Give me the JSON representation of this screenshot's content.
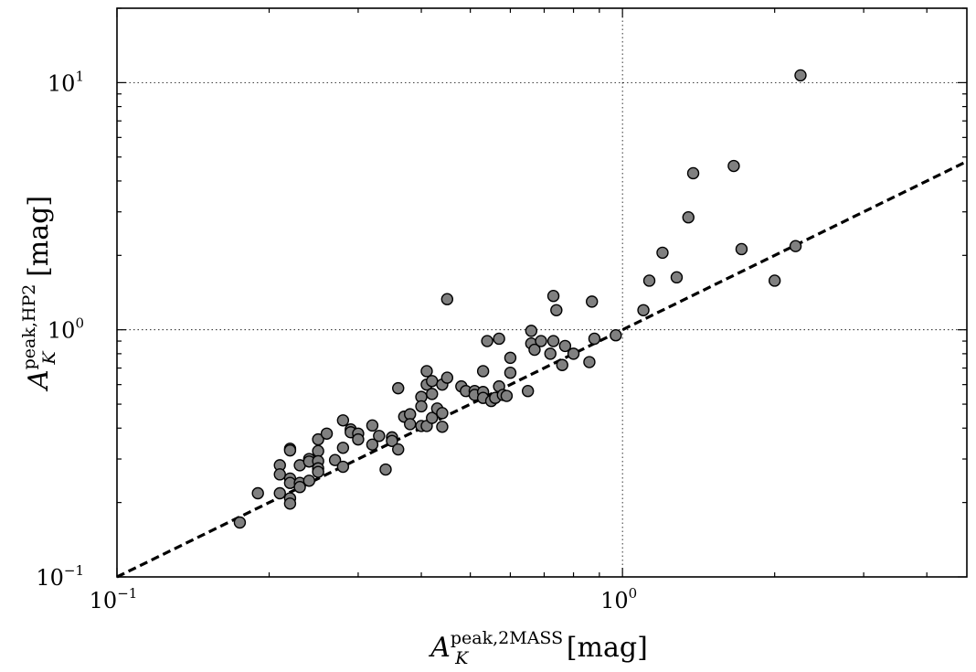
{
  "chart_data": {
    "type": "scatter",
    "xscale": "log",
    "yscale": "log",
    "xlim": [
      0.1,
      4.8
    ],
    "ylim": [
      0.1,
      20
    ],
    "grid": "major dotted",
    "xlabel": {
      "base": "A",
      "sub": "K",
      "sup": "peak,2MASS",
      "unit": " [mag]"
    },
    "ylabel": {
      "base": "A",
      "sub": "K",
      "sup": "peak,HP2",
      "unit": " [mag]"
    },
    "xticks": [
      {
        "value": 0.1,
        "base": "10",
        "exp": "−1"
      },
      {
        "value": 1,
        "base": "10",
        "exp": "0"
      }
    ],
    "yticks": [
      {
        "value": 0.1,
        "base": "10",
        "exp": "−1"
      },
      {
        "value": 1,
        "base": "10",
        "exp": "0"
      },
      {
        "value": 10,
        "base": "10",
        "exp": "1"
      }
    ],
    "reference_line": {
      "style": "dashed",
      "x": [
        0.1,
        4.8
      ],
      "y": [
        0.1,
        4.8
      ]
    },
    "marker_color": "#808080",
    "marker_edge": "#000000",
    "points": [
      {
        "x": 0.175,
        "y": 0.166
      },
      {
        "x": 0.19,
        "y": 0.218
      },
      {
        "x": 0.21,
        "y": 0.283
      },
      {
        "x": 0.21,
        "y": 0.26
      },
      {
        "x": 0.21,
        "y": 0.218
      },
      {
        "x": 0.22,
        "y": 0.33
      },
      {
        "x": 0.22,
        "y": 0.325
      },
      {
        "x": 0.22,
        "y": 0.25
      },
      {
        "x": 0.22,
        "y": 0.24
      },
      {
        "x": 0.22,
        "y": 0.208
      },
      {
        "x": 0.22,
        "y": 0.198
      },
      {
        "x": 0.23,
        "y": 0.283
      },
      {
        "x": 0.23,
        "y": 0.24
      },
      {
        "x": 0.23,
        "y": 0.231
      },
      {
        "x": 0.24,
        "y": 0.3
      },
      {
        "x": 0.24,
        "y": 0.293
      },
      {
        "x": 0.24,
        "y": 0.245
      },
      {
        "x": 0.25,
        "y": 0.36
      },
      {
        "x": 0.25,
        "y": 0.323
      },
      {
        "x": 0.25,
        "y": 0.294
      },
      {
        "x": 0.25,
        "y": 0.275
      },
      {
        "x": 0.25,
        "y": 0.266
      },
      {
        "x": 0.26,
        "y": 0.38
      },
      {
        "x": 0.27,
        "y": 0.297
      },
      {
        "x": 0.28,
        "y": 0.43
      },
      {
        "x": 0.28,
        "y": 0.333
      },
      {
        "x": 0.28,
        "y": 0.279
      },
      {
        "x": 0.29,
        "y": 0.395
      },
      {
        "x": 0.29,
        "y": 0.385
      },
      {
        "x": 0.3,
        "y": 0.38
      },
      {
        "x": 0.3,
        "y": 0.36
      },
      {
        "x": 0.32,
        "y": 0.41
      },
      {
        "x": 0.32,
        "y": 0.343
      },
      {
        "x": 0.33,
        "y": 0.372
      },
      {
        "x": 0.34,
        "y": 0.272
      },
      {
        "x": 0.35,
        "y": 0.367
      },
      {
        "x": 0.35,
        "y": 0.355
      },
      {
        "x": 0.36,
        "y": 0.58
      },
      {
        "x": 0.36,
        "y": 0.328
      },
      {
        "x": 0.37,
        "y": 0.445
      },
      {
        "x": 0.38,
        "y": 0.455
      },
      {
        "x": 0.38,
        "y": 0.415
      },
      {
        "x": 0.4,
        "y": 0.535
      },
      {
        "x": 0.4,
        "y": 0.49
      },
      {
        "x": 0.4,
        "y": 0.408
      },
      {
        "x": 0.41,
        "y": 0.68
      },
      {
        "x": 0.41,
        "y": 0.6
      },
      {
        "x": 0.41,
        "y": 0.408
      },
      {
        "x": 0.42,
        "y": 0.62
      },
      {
        "x": 0.42,
        "y": 0.55
      },
      {
        "x": 0.42,
        "y": 0.44
      },
      {
        "x": 0.43,
        "y": 0.48
      },
      {
        "x": 0.44,
        "y": 0.6
      },
      {
        "x": 0.44,
        "y": 0.46
      },
      {
        "x": 0.44,
        "y": 0.405
      },
      {
        "x": 0.45,
        "y": 1.33
      },
      {
        "x": 0.45,
        "y": 0.64
      },
      {
        "x": 0.48,
        "y": 0.59
      },
      {
        "x": 0.49,
        "y": 0.565
      },
      {
        "x": 0.51,
        "y": 0.565
      },
      {
        "x": 0.51,
        "y": 0.545
      },
      {
        "x": 0.53,
        "y": 0.68
      },
      {
        "x": 0.53,
        "y": 0.56
      },
      {
        "x": 0.53,
        "y": 0.53
      },
      {
        "x": 0.54,
        "y": 0.9
      },
      {
        "x": 0.55,
        "y": 0.515
      },
      {
        "x": 0.56,
        "y": 0.53
      },
      {
        "x": 0.57,
        "y": 0.92
      },
      {
        "x": 0.57,
        "y": 0.59
      },
      {
        "x": 0.58,
        "y": 0.545
      },
      {
        "x": 0.59,
        "y": 0.54
      },
      {
        "x": 0.6,
        "y": 0.77
      },
      {
        "x": 0.6,
        "y": 0.67
      },
      {
        "x": 0.65,
        "y": 0.565
      },
      {
        "x": 0.66,
        "y": 0.99
      },
      {
        "x": 0.66,
        "y": 0.88
      },
      {
        "x": 0.67,
        "y": 0.83
      },
      {
        "x": 0.69,
        "y": 0.9
      },
      {
        "x": 0.72,
        "y": 0.8
      },
      {
        "x": 0.73,
        "y": 1.37
      },
      {
        "x": 0.73,
        "y": 0.9
      },
      {
        "x": 0.74,
        "y": 1.2
      },
      {
        "x": 0.76,
        "y": 0.72
      },
      {
        "x": 0.77,
        "y": 0.86
      },
      {
        "x": 0.8,
        "y": 0.8
      },
      {
        "x": 0.86,
        "y": 0.74
      },
      {
        "x": 0.87,
        "y": 1.3
      },
      {
        "x": 0.88,
        "y": 0.92
      },
      {
        "x": 0.97,
        "y": 0.95
      },
      {
        "x": 1.1,
        "y": 1.2
      },
      {
        "x": 1.13,
        "y": 1.58
      },
      {
        "x": 1.2,
        "y": 2.05
      },
      {
        "x": 1.28,
        "y": 1.63
      },
      {
        "x": 1.35,
        "y": 2.85
      },
      {
        "x": 1.38,
        "y": 4.3
      },
      {
        "x": 1.66,
        "y": 4.6
      },
      {
        "x": 1.72,
        "y": 2.12
      },
      {
        "x": 2.0,
        "y": 1.58
      },
      {
        "x": 2.2,
        "y": 2.18
      },
      {
        "x": 2.25,
        "y": 10.7
      }
    ]
  }
}
